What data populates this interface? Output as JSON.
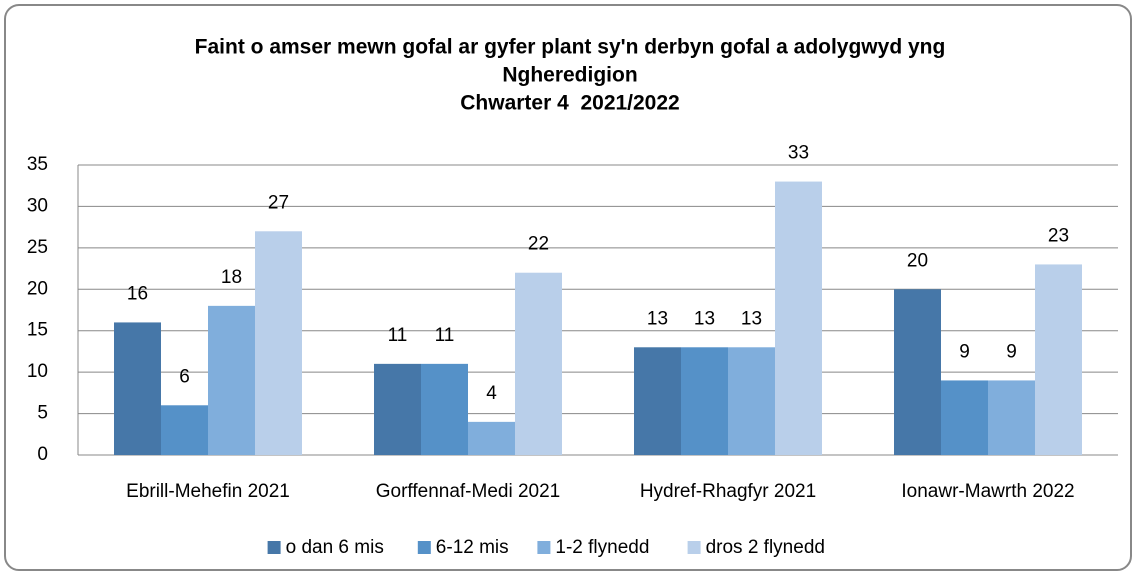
{
  "chart_data": {
    "type": "bar",
    "title": [
      "Faint o amser mewn gofal ar gyfer plant sy'n derbyn gofal a adolygwyd yng",
      "Ngheredigion",
      "Chwarter 4  2021/2022"
    ],
    "categories": [
      "Ebrill-Mehefin 2021",
      "Gorffennaf-Medi 2021",
      "Hydref-Rhagfyr 2021",
      "Ionawr-Mawrth 2022"
    ],
    "series": [
      {
        "name": "o dan 6 mis",
        "color": "#4677a8",
        "values": [
          16,
          11,
          13,
          20
        ]
      },
      {
        "name": "6-12 mis",
        "color": "#5591c8",
        "values": [
          6,
          11,
          13,
          9
        ]
      },
      {
        "name": "1-2 flynedd",
        "color": "#80aedc",
        "values": [
          18,
          4,
          13,
          9
        ]
      },
      {
        "name": "dros 2 flynedd",
        "color": "#b9cfea",
        "values": [
          27,
          22,
          33,
          23
        ]
      }
    ],
    "ylim": [
      0,
      35
    ],
    "yticks": [
      0,
      5,
      10,
      15,
      20,
      25,
      30,
      35
    ],
    "grid": true,
    "legend": "bottom"
  }
}
